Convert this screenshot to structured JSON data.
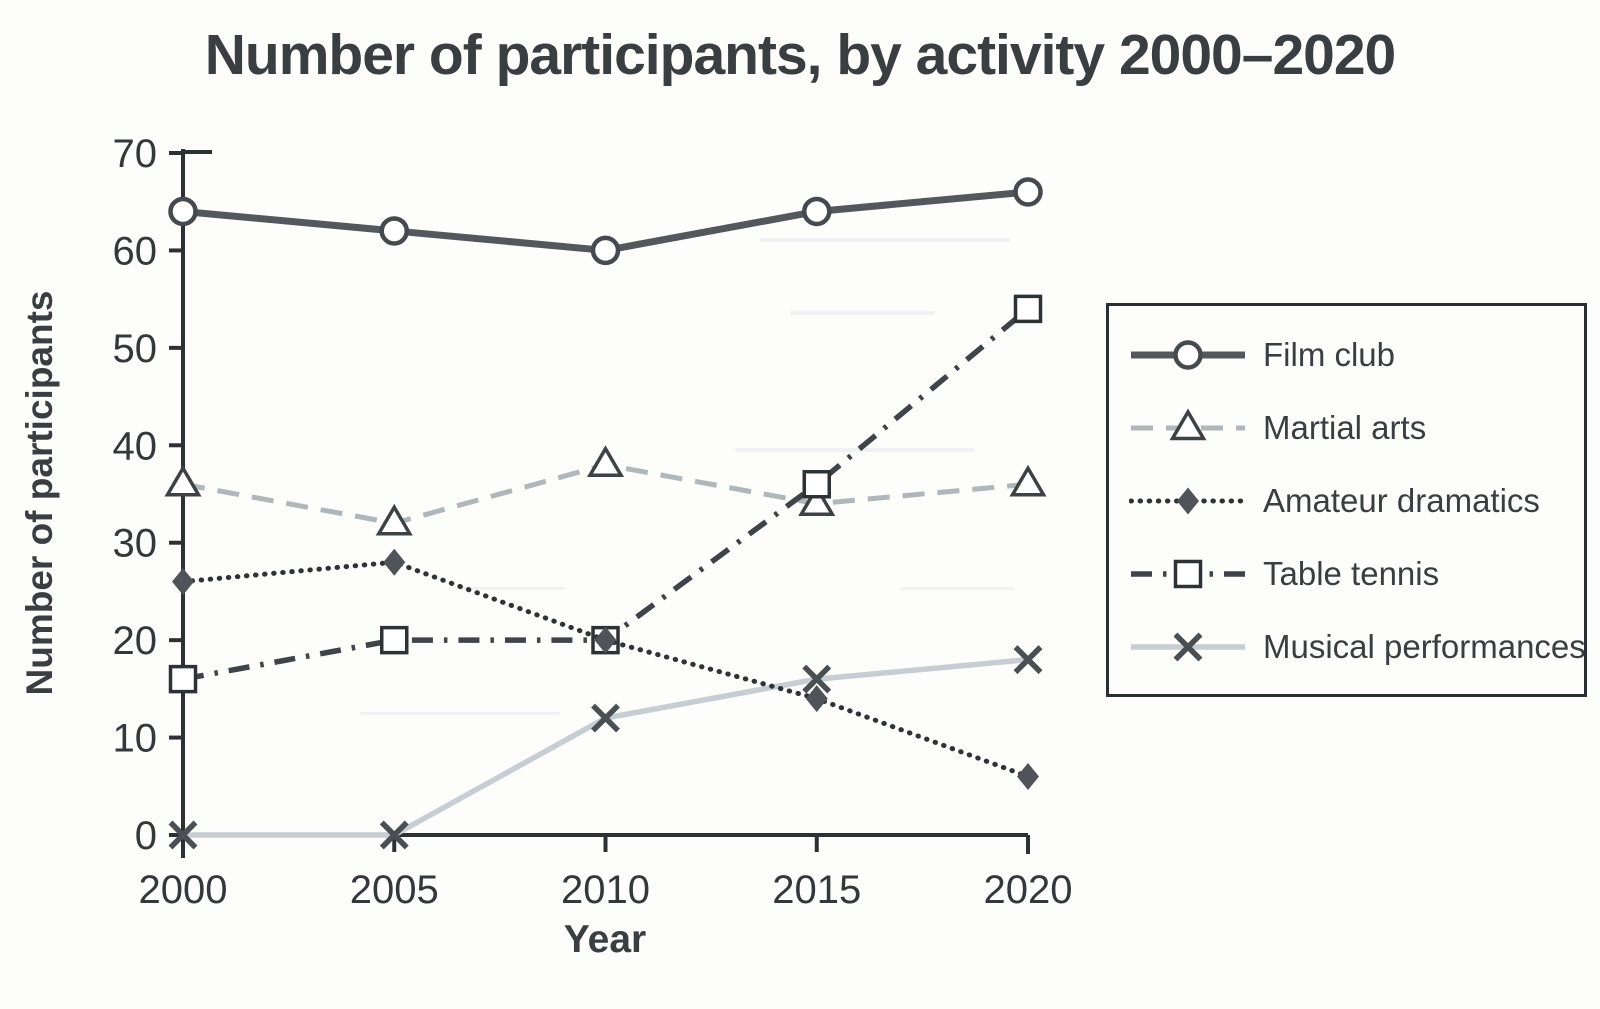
{
  "page": {
    "background": "#fdfdfc"
  },
  "colors": {
    "axis": "#2e3134",
    "tick_text": "#35383b",
    "heading_text": "#3b3e41"
  },
  "chart_data": {
    "type": "line",
    "title": "Number of participants, by activity 2000–2020",
    "xlabel": "Year",
    "ylabel": "Number of participants",
    "x": [
      "2000",
      "2005",
      "2010",
      "2015",
      "2020"
    ],
    "ylim": [
      0,
      70
    ],
    "yticks": [
      0,
      10,
      20,
      30,
      40,
      50,
      60,
      70
    ],
    "grid": false,
    "legend_position": "right",
    "series": [
      {
        "name": "Film club",
        "values": [
          64,
          62,
          60,
          64,
          66
        ],
        "color": "#54585c",
        "line_style": "solid",
        "line_width": 7,
        "marker": "circle-open",
        "marker_fill": "#ffffff",
        "marker_stroke": "#46494d"
      },
      {
        "name": "Martial arts",
        "values": [
          36,
          32,
          38,
          34,
          36
        ],
        "color": "#b0b6b9",
        "line_style": "dashed",
        "line_width": 5,
        "marker": "triangle-open",
        "marker_fill": "#ffffff",
        "marker_stroke": "#3e4245"
      },
      {
        "name": "Amateur dramatics",
        "values": [
          26,
          28,
          20,
          14,
          6
        ],
        "color": "#303336",
        "line_style": "dotted",
        "line_width": 5,
        "marker": "diamond-filled",
        "marker_fill": "#505458"
      },
      {
        "name": "Table tennis",
        "values": [
          16,
          20,
          20,
          36,
          54
        ],
        "color": "#404448",
        "line_style": "dash-dot",
        "line_width": 5.5,
        "marker": "square-open",
        "marker_fill": "#ffffff",
        "marker_stroke": "#2f3235"
      },
      {
        "name": "Musical performances",
        "values": [
          0,
          0,
          12,
          16,
          18
        ],
        "color": "#c7cdd2",
        "line_style": "solid",
        "line_width": 5.5,
        "marker": "x",
        "marker_stroke": "#4a4f54"
      }
    ]
  }
}
